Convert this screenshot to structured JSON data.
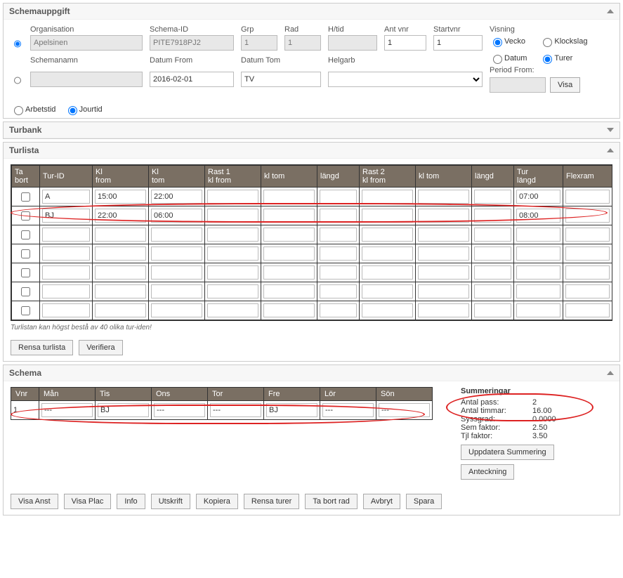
{
  "panel1": {
    "title": "Schemauppgift",
    "labels": {
      "org": "Organisation",
      "schemaid": "Schema-ID",
      "grp": "Grp",
      "rad": "Rad",
      "htid": "H/tid",
      "antvnr": "Ant vnr",
      "startvnr": "Startvnr",
      "visning": "Visning",
      "schemanamn": "Schemanamn",
      "datumfrom": "Datum From",
      "datumtom": "Datum Tom",
      "helgarb": "Helgarb",
      "periodfrom": "Period From:"
    },
    "values": {
      "org": "Apelsinen",
      "schemaid": "PITE7918PJ2",
      "grp": "1",
      "rad": "1",
      "htid": "",
      "antvnr": "1",
      "startvnr": "1",
      "schemanamn": "",
      "datumfrom": "2016-02-01",
      "datumtom": "TV",
      "helgarb": "",
      "periodfrom": ""
    },
    "visning": {
      "vecko": "Vecko",
      "klockslag": "Klockslag",
      "datum": "Datum",
      "turer": "Turer"
    },
    "visa_btn": "Visa",
    "arbetstid": "Arbetstid",
    "jourtid": "Jourtid"
  },
  "panel2": {
    "title": "Turbank"
  },
  "panel3": {
    "title": "Turlista",
    "headers": [
      "Ta\nbort",
      "Tur-ID",
      "Kl\nfrom",
      "Kl\ntom",
      "Rast 1\nkl from",
      "kl tom",
      "längd",
      "Rast 2\nkl from",
      "kl tom",
      "längd",
      "Tur\nlängd",
      "Flexram"
    ],
    "rows": [
      {
        "chk": false,
        "turid": "A",
        "klfrom": "15:00",
        "kltom": "22:00",
        "r1f": "",
        "r1t": "",
        "r1l": "",
        "r2f": "",
        "r2t": "",
        "r2l": "",
        "turlangd": "07:00",
        "flex": ""
      },
      {
        "chk": false,
        "turid": "BJ",
        "klfrom": "22:00",
        "kltom": "06:00",
        "r1f": "",
        "r1t": "",
        "r1l": "",
        "r2f": "",
        "r2t": "",
        "r2l": "",
        "turlangd": "08:00",
        "flex": ""
      },
      {
        "chk": false,
        "turid": "",
        "klfrom": "",
        "kltom": "",
        "r1f": "",
        "r1t": "",
        "r1l": "",
        "r2f": "",
        "r2t": "",
        "r2l": "",
        "turlangd": "",
        "flex": ""
      },
      {
        "chk": false,
        "turid": "",
        "klfrom": "",
        "kltom": "",
        "r1f": "",
        "r1t": "",
        "r1l": "",
        "r2f": "",
        "r2t": "",
        "r2l": "",
        "turlangd": "",
        "flex": ""
      },
      {
        "chk": false,
        "turid": "",
        "klfrom": "",
        "kltom": "",
        "r1f": "",
        "r1t": "",
        "r1l": "",
        "r2f": "",
        "r2t": "",
        "r2l": "",
        "turlangd": "",
        "flex": ""
      },
      {
        "chk": false,
        "turid": "",
        "klfrom": "",
        "kltom": "",
        "r1f": "",
        "r1t": "",
        "r1l": "",
        "r2f": "",
        "r2t": "",
        "r2l": "",
        "turlangd": "",
        "flex": ""
      },
      {
        "chk": false,
        "turid": "",
        "klfrom": "",
        "kltom": "",
        "r1f": "",
        "r1t": "",
        "r1l": "",
        "r2f": "",
        "r2t": "",
        "r2l": "",
        "turlangd": "",
        "flex": ""
      }
    ],
    "hint": "Turlistan kan högst bestå av 40 olika tur-iden!",
    "rensa": "Rensa turlista",
    "verifiera": "Verifiera"
  },
  "panel4": {
    "title": "Schema",
    "headers": [
      "Vnr",
      "Mån",
      "Tis",
      "Ons",
      "Tor",
      "Fre",
      "Lör",
      "Sön"
    ],
    "row": {
      "vnr": "1",
      "mon": "---",
      "tis": "BJ",
      "ons": "---",
      "tor": "---",
      "fre": "BJ",
      "lor": "---",
      "son": "---"
    },
    "summ_title": "Summeringar",
    "summ": [
      {
        "k": "Antal pass:",
        "v": "2"
      },
      {
        "k": "Antal timmar:",
        "v": "16.00"
      },
      {
        "k": "Syssgrad:",
        "v": "0.0000"
      },
      {
        "k": "Sem faktor:",
        "v": "2.50"
      },
      {
        "k": "Tjl faktor:",
        "v": "3.50"
      }
    ],
    "upd_btn": "Uppdatera Summering",
    "ant_btn": "Anteckning",
    "bottom": [
      "Visa Anst",
      "Visa Plac",
      "Info",
      "Utskrift",
      "Kopiera",
      "Rensa turer",
      "Ta bort rad",
      "Avbryt",
      "Spara"
    ]
  },
  "colors": {
    "header_bg": "#7a6f63",
    "header_fg": "#ffffff",
    "panel_border": "#cccccc",
    "annotation": "#d22222"
  }
}
